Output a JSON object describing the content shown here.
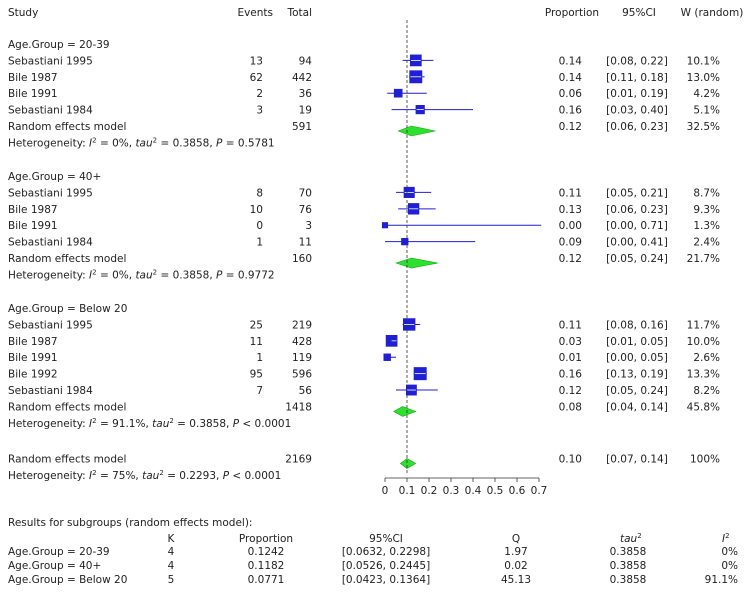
{
  "chart_data": {
    "type": "forest",
    "headers": {
      "study": "Study",
      "events": "Events",
      "total": "Total",
      "proportion": "Proportion",
      "ci": "95%CI",
      "weight": "W (random)"
    },
    "xaxis": {
      "ticks": [
        "0",
        "0.1",
        "0.2",
        "0.3",
        "0.4",
        "0.5",
        "0.6",
        "0.7"
      ],
      "range": [
        0,
        0.7
      ],
      "reference_line": 0.1
    },
    "groups": [
      {
        "label": "Age.Group = 20-39",
        "studies": [
          {
            "study": "Sebastiani 1995",
            "events": "13",
            "total": "94",
            "prop": 0.14,
            "lower": 0.08,
            "upper": 0.22,
            "prop_text": "0.14",
            "ci_text": "[0.08, 0.22]",
            "weight_text": "10.1%",
            "weight": 10.1
          },
          {
            "study": "Bile 1987",
            "events": "62",
            "total": "442",
            "prop": 0.14,
            "lower": 0.11,
            "upper": 0.18,
            "prop_text": "0.14",
            "ci_text": "[0.11, 0.18]",
            "weight_text": "13.0%",
            "weight": 13.0
          },
          {
            "study": "Bile 1991",
            "events": "2",
            "total": "36",
            "prop": 0.06,
            "lower": 0.01,
            "upper": 0.19,
            "prop_text": "0.06",
            "ci_text": "[0.01, 0.19]",
            "weight_text": "4.2%",
            "weight": 4.2
          },
          {
            "study": "Sebastiani 1984",
            "events": "3",
            "total": "19",
            "prop": 0.16,
            "lower": 0.03,
            "upper": 0.4,
            "prop_text": "0.16",
            "ci_text": "[0.03, 0.40]",
            "weight_text": "5.1%",
            "weight": 5.1
          }
        ],
        "pooled": {
          "label": "Random effects model",
          "total": "591",
          "prop": 0.12,
          "lower": 0.06,
          "upper": 0.23,
          "prop_text": "0.12",
          "ci_text": "[0.06, 0.23]",
          "weight_text": "32.5%"
        },
        "heterogeneity": {
          "prefix": "Heterogeneity: ",
          "i2": "0%",
          "tau2": "0.3858",
          "p_op": "=",
          "p": "0.5781"
        }
      },
      {
        "label": "Age.Group = 40+",
        "studies": [
          {
            "study": "Sebastiani 1995",
            "events": "8",
            "total": "70",
            "prop": 0.11,
            "lower": 0.05,
            "upper": 0.21,
            "prop_text": "0.11",
            "ci_text": "[0.05, 0.21]",
            "weight_text": "8.7%",
            "weight": 8.7
          },
          {
            "study": "Bile 1987",
            "events": "10",
            "total": "76",
            "prop": 0.13,
            "lower": 0.06,
            "upper": 0.23,
            "prop_text": "0.13",
            "ci_text": "[0.06, 0.23]",
            "weight_text": "9.3%",
            "weight": 9.3
          },
          {
            "study": "Bile 1991",
            "events": "0",
            "total": "3",
            "prop": 0.0,
            "lower": 0.0,
            "upper": 0.71,
            "prop_text": "0.00",
            "ci_text": "[0.00, 0.71]",
            "weight_text": "1.3%",
            "weight": 1.3
          },
          {
            "study": "Sebastiani 1984",
            "events": "1",
            "total": "11",
            "prop": 0.09,
            "lower": 0.0,
            "upper": 0.41,
            "prop_text": "0.09",
            "ci_text": "[0.00, 0.41]",
            "weight_text": "2.4%",
            "weight": 2.4
          }
        ],
        "pooled": {
          "label": "Random effects model",
          "total": "160",
          "prop": 0.12,
          "lower": 0.05,
          "upper": 0.24,
          "prop_text": "0.12",
          "ci_text": "[0.05, 0.24]",
          "weight_text": "21.7%"
        },
        "heterogeneity": {
          "prefix": "Heterogeneity: ",
          "i2": "0%",
          "tau2": "0.3858",
          "p_op": "=",
          "p": "0.9772"
        }
      },
      {
        "label": "Age.Group = Below 20",
        "studies": [
          {
            "study": "Sebastiani 1995",
            "events": "25",
            "total": "219",
            "prop": 0.11,
            "lower": 0.08,
            "upper": 0.16,
            "prop_text": "0.11",
            "ci_text": "[0.08, 0.16]",
            "weight_text": "11.7%",
            "weight": 11.7
          },
          {
            "study": "Bile 1987",
            "events": "11",
            "total": "428",
            "prop": 0.03,
            "lower": 0.01,
            "upper": 0.05,
            "prop_text": "0.03",
            "ci_text": "[0.01, 0.05]",
            "weight_text": "10.0%",
            "weight": 10.0
          },
          {
            "study": "Bile 1991",
            "events": "1",
            "total": "119",
            "prop": 0.01,
            "lower": 0.0,
            "upper": 0.05,
            "prop_text": "0.01",
            "ci_text": "[0.00, 0.05]",
            "weight_text": "2.6%",
            "weight": 2.6
          },
          {
            "study": "Bile 1992",
            "events": "95",
            "total": "596",
            "prop": 0.16,
            "lower": 0.13,
            "upper": 0.19,
            "prop_text": "0.16",
            "ci_text": "[0.13, 0.19]",
            "weight_text": "13.3%",
            "weight": 13.3
          },
          {
            "study": "Sebastiani 1984",
            "events": "7",
            "total": "56",
            "prop": 0.12,
            "lower": 0.05,
            "upper": 0.24,
            "prop_text": "0.12",
            "ci_text": "[0.05, 0.24]",
            "weight_text": "8.2%",
            "weight": 8.2
          }
        ],
        "pooled": {
          "label": "Random effects model",
          "total": "1418",
          "prop": 0.08,
          "lower": 0.04,
          "upper": 0.14,
          "prop_text": "0.08",
          "ci_text": "[0.04, 0.14]",
          "weight_text": "45.8%"
        },
        "heterogeneity": {
          "prefix": "Heterogeneity: ",
          "i2": "91.1%",
          "tau2": "0.3858",
          "p_op": "<",
          "p": "0.0001"
        }
      }
    ],
    "overall": {
      "label": "Random effects model",
      "total": "2169",
      "prop": 0.1,
      "lower": 0.07,
      "upper": 0.14,
      "prop_text": "0.10",
      "ci_text": "[0.07, 0.14]",
      "weight_text": "100%",
      "heterogeneity": {
        "prefix": "Heterogeneity: ",
        "i2": "75%",
        "tau2": "0.2293",
        "p_op": "<",
        "p": "0.0001"
      }
    },
    "subgroup_results": {
      "title": "Results for subgroups (random effects model):",
      "headers": [
        "K",
        "Proportion",
        "95%CI",
        "Q",
        "tau",
        "I"
      ],
      "rows": [
        {
          "group": "Age.Group = 20-39",
          "k": "4",
          "proportion": "0.1242",
          "ci": "[0.0632, 0.2298]",
          "q": "1.97",
          "tau2": "0.3858",
          "i2": "0%"
        },
        {
          "group": "Age.Group = 40+",
          "k": "4",
          "proportion": "0.1182",
          "ci": "[0.0526, 0.2445]",
          "q": "0.02",
          "tau2": "0.3858",
          "i2": "0%"
        },
        {
          "group": "Age.Group = Below 20",
          "k": "5",
          "proportion": "0.0771",
          "ci": "[0.0423, 0.1364]",
          "q": "45.13",
          "tau2": "0.3858",
          "i2": "91.1%"
        }
      ]
    }
  }
}
